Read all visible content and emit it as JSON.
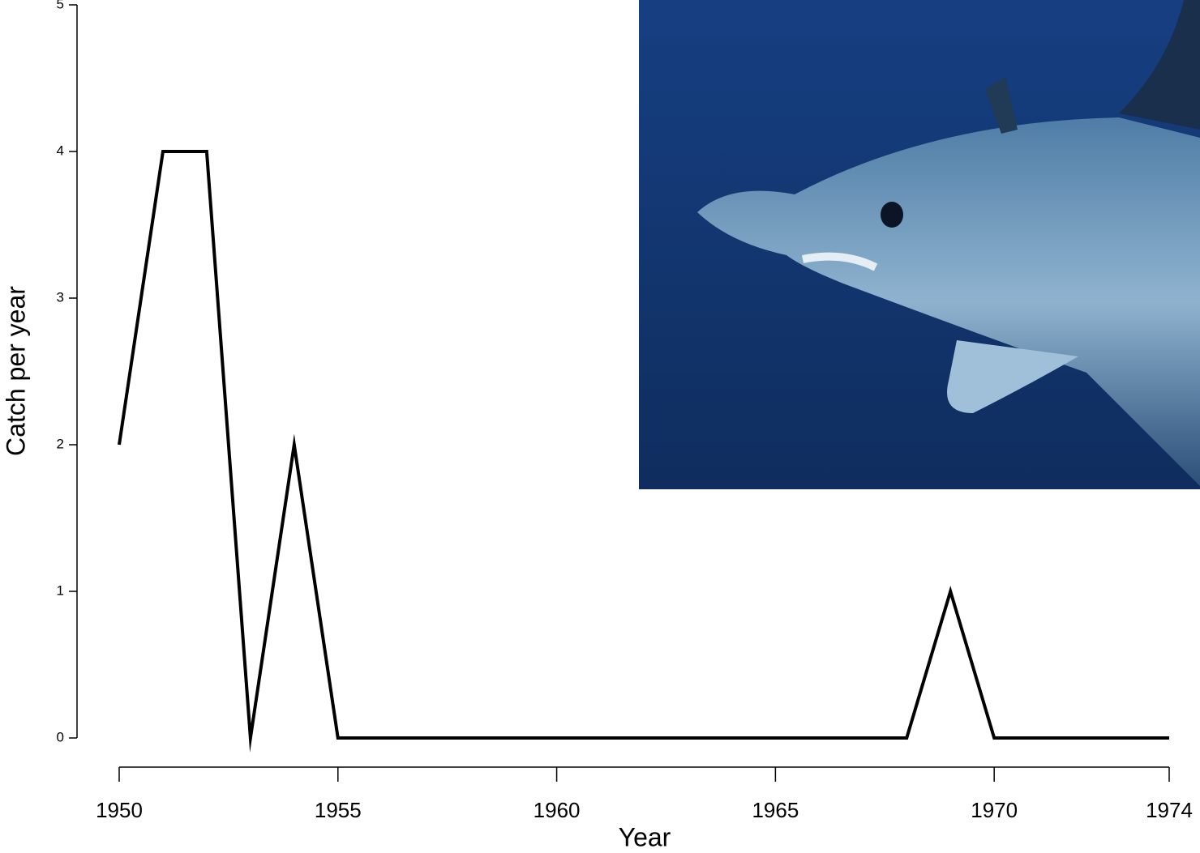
{
  "chart_data": {
    "type": "line",
    "x_label": "Year",
    "y_label": "Catch per year",
    "x": [
      1950,
      1951,
      1952,
      1953,
      1954,
      1955,
      1956,
      1957,
      1958,
      1959,
      1960,
      1961,
      1962,
      1963,
      1964,
      1965,
      1966,
      1967,
      1968,
      1969,
      1970,
      1971,
      1972,
      1973,
      1974
    ],
    "values": [
      2,
      4,
      4,
      0,
      2,
      0,
      0,
      0,
      0,
      0,
      0,
      0,
      0,
      0,
      0,
      0,
      0,
      0,
      0,
      1,
      0,
      0,
      0,
      0,
      0
    ],
    "color": "#000000",
    "xlim": [
      1950,
      1974
    ],
    "xticks": [
      1950,
      1955,
      1960,
      1965,
      1970,
      1974
    ],
    "ylim": [
      0,
      5
    ],
    "yticks": [
      0,
      1,
      2,
      3,
      4,
      5
    ]
  }
}
